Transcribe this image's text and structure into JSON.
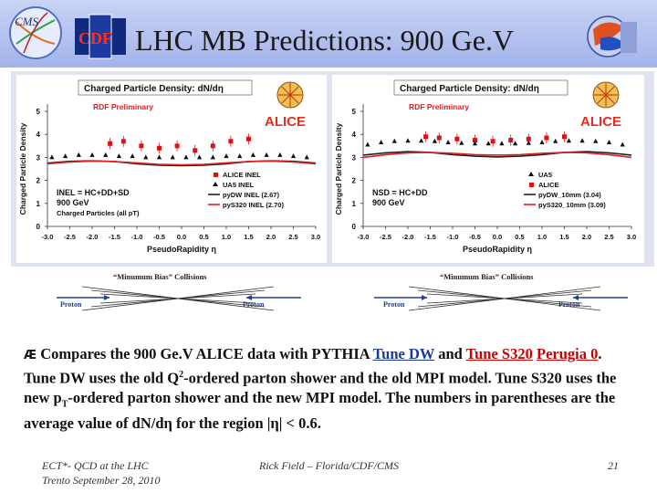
{
  "slide": {
    "title": "LHC MB Predictions: 900 Ge.V",
    "logo_left": "CMS",
    "logo_cdf": "CDF",
    "footer_left_line1": "ECT*- QCD at the LHC",
    "footer_left_line2": "Trento September 28, 2010",
    "footer_center": "Rick Field – Florida/CDF/CMS",
    "page_number": "21"
  },
  "collision_labels": {
    "left_title": "“Minumum Bias” Collisions",
    "right_title": "“Minumum Bias” Collisions",
    "proton": "Proton"
  },
  "bullet": {
    "marker": "Æ",
    "part1": "Compares the 900 Ge.V ALICE data with PYTHIA ",
    "tune_dw": "Tune DW",
    "and": " and ",
    "tune_s320": "Tune S320",
    "perugia": "Perugia 0",
    "part2": ". Tune DW uses the old Q",
    "sup2": "2",
    "part3": "-ordered parton shower and the old MPI model. Tune S320 uses the new p",
    "subT": "T",
    "part4": "-ordered parton shower and the new MPI model. The numbers in parentheses are the average value of dN/d",
    "eta": "η",
    "part5": " for the region |",
    "part6": "| < 0.6."
  },
  "chart_data": [
    {
      "type": "scatter",
      "title": "Charged Particle Density: dN/dη",
      "watermark": "RDF Preliminary",
      "experiment_logo": "ALICE",
      "xlabel": "PseudoRapidity η",
      "ylabel": "Charged Particle Density",
      "xlim": [
        -3.0,
        3.0
      ],
      "ylim": [
        0,
        5
      ],
      "x_ticks": [
        "-3.0",
        "-2.5",
        "-2.0",
        "-1.5",
        "-1.0",
        "-0.5",
        "0.0",
        "0.5",
        "1.0",
        "1.5",
        "2.0",
        "2.5",
        "3.0"
      ],
      "y_ticks": [
        "0",
        "1",
        "2",
        "3",
        "4",
        "5"
      ],
      "annotation_lines": [
        "INEL = HC+DD+SD",
        "900 GeV",
        "Charged Particles (all pT)"
      ],
      "legend": [
        "ALICE INEL",
        "UA5 INEL",
        "pyDW INEL (2.67)",
        "pyS320 INEL (2.70)"
      ],
      "series": [
        {
          "name": "ALICE INEL",
          "x": [
            -1.6,
            -1.3,
            -0.9,
            -0.5,
            -0.1,
            0.3,
            0.7,
            1.1,
            1.5
          ],
          "y": [
            3.6,
            3.7,
            3.5,
            3.4,
            3.5,
            3.3,
            3.5,
            3.7,
            3.8
          ]
        },
        {
          "name": "UA5 INEL",
          "x": [
            -2.9,
            -2.6,
            -2.3,
            -2.0,
            -1.7,
            -1.4,
            -1.1,
            -0.8,
            -0.5,
            -0.2,
            0.1,
            0.4,
            0.7,
            1.0,
            1.3,
            1.6,
            1.9,
            2.2,
            2.5,
            2.8
          ],
          "y": [
            3.0,
            3.05,
            3.1,
            3.1,
            3.1,
            3.05,
            3.05,
            3.0,
            3.0,
            3.0,
            3.0,
            3.0,
            3.0,
            3.05,
            3.05,
            3.1,
            3.1,
            3.1,
            3.05,
            3.0
          ]
        },
        {
          "name": "pyDW INEL (2.67)",
          "x": [
            -3.0,
            -2.5,
            -2.0,
            -1.5,
            -1.0,
            -0.5,
            0.0,
            0.5,
            1.0,
            1.5,
            2.0,
            2.5,
            3.0
          ],
          "y": [
            2.75,
            2.83,
            2.85,
            2.82,
            2.72,
            2.66,
            2.64,
            2.66,
            2.72,
            2.82,
            2.85,
            2.83,
            2.75
          ]
        },
        {
          "name": "pyS320 INEL (2.70)",
          "x": [
            -3.0,
            -2.5,
            -2.0,
            -1.5,
            -1.0,
            -0.5,
            0.0,
            0.5,
            1.0,
            1.5,
            2.0,
            2.5,
            3.0
          ],
          "y": [
            2.72,
            2.8,
            2.84,
            2.82,
            2.76,
            2.7,
            2.68,
            2.7,
            2.76,
            2.82,
            2.84,
            2.8,
            2.72
          ]
        }
      ]
    },
    {
      "type": "scatter",
      "title": "Charged Particle Density: dN/dη",
      "watermark": "RDF Preliminary",
      "experiment_logo": "ALICE",
      "xlabel": "PseudoRapidity η",
      "ylabel": "Charged Particle Density",
      "xlim": [
        -3.0,
        3.0
      ],
      "ylim": [
        0,
        5
      ],
      "x_ticks": [
        "-3.0",
        "-2.5",
        "-2.0",
        "-1.5",
        "-1.0",
        "-0.5",
        "0.0",
        "0.5",
        "1.0",
        "1.5",
        "2.0",
        "2.5",
        "3.0"
      ],
      "y_ticks": [
        "0",
        "1",
        "2",
        "3",
        "4",
        "5"
      ],
      "annotation_lines": [
        "NSD = HC+DD",
        "900 GeV"
      ],
      "legend": [
        "UA5",
        "ALICE",
        "pyDW_10mm (3.04)",
        "pyS320_10mm (3.09)"
      ],
      "series": [
        {
          "name": "ALICE",
          "x": [
            -1.6,
            -1.3,
            -0.9,
            -0.5,
            -0.1,
            0.3,
            0.7,
            1.1,
            1.5
          ],
          "y": [
            3.9,
            3.85,
            3.8,
            3.75,
            3.7,
            3.75,
            3.8,
            3.85,
            3.9
          ]
        },
        {
          "name": "UA5",
          "x": [
            -2.9,
            -2.6,
            -2.3,
            -2.0,
            -1.7,
            -1.4,
            -1.1,
            -0.8,
            -0.5,
            -0.2,
            0.1,
            0.4,
            0.7,
            1.0,
            1.3,
            1.6,
            1.9,
            2.2,
            2.5,
            2.8
          ],
          "y": [
            3.55,
            3.65,
            3.7,
            3.72,
            3.72,
            3.7,
            3.65,
            3.62,
            3.6,
            3.6,
            3.6,
            3.6,
            3.62,
            3.65,
            3.7,
            3.72,
            3.72,
            3.7,
            3.65,
            3.55
          ]
        },
        {
          "name": "pyDW_10mm (3.04)",
          "x": [
            -3.0,
            -2.5,
            -2.0,
            -1.5,
            -1.0,
            -0.5,
            0.0,
            0.5,
            1.0,
            1.5,
            2.0,
            2.5,
            3.0
          ],
          "y": [
            3.1,
            3.2,
            3.25,
            3.22,
            3.12,
            3.05,
            3.02,
            3.05,
            3.12,
            3.22,
            3.25,
            3.2,
            3.1
          ]
        },
        {
          "name": "pyS320_10mm (3.09)",
          "x": [
            -3.0,
            -2.5,
            -2.0,
            -1.5,
            -1.0,
            -0.5,
            0.0,
            0.5,
            1.0,
            1.5,
            2.0,
            2.5,
            3.0
          ],
          "y": [
            3.0,
            3.12,
            3.2,
            3.22,
            3.18,
            3.12,
            3.1,
            3.12,
            3.18,
            3.22,
            3.2,
            3.12,
            3.0
          ]
        }
      ]
    }
  ]
}
